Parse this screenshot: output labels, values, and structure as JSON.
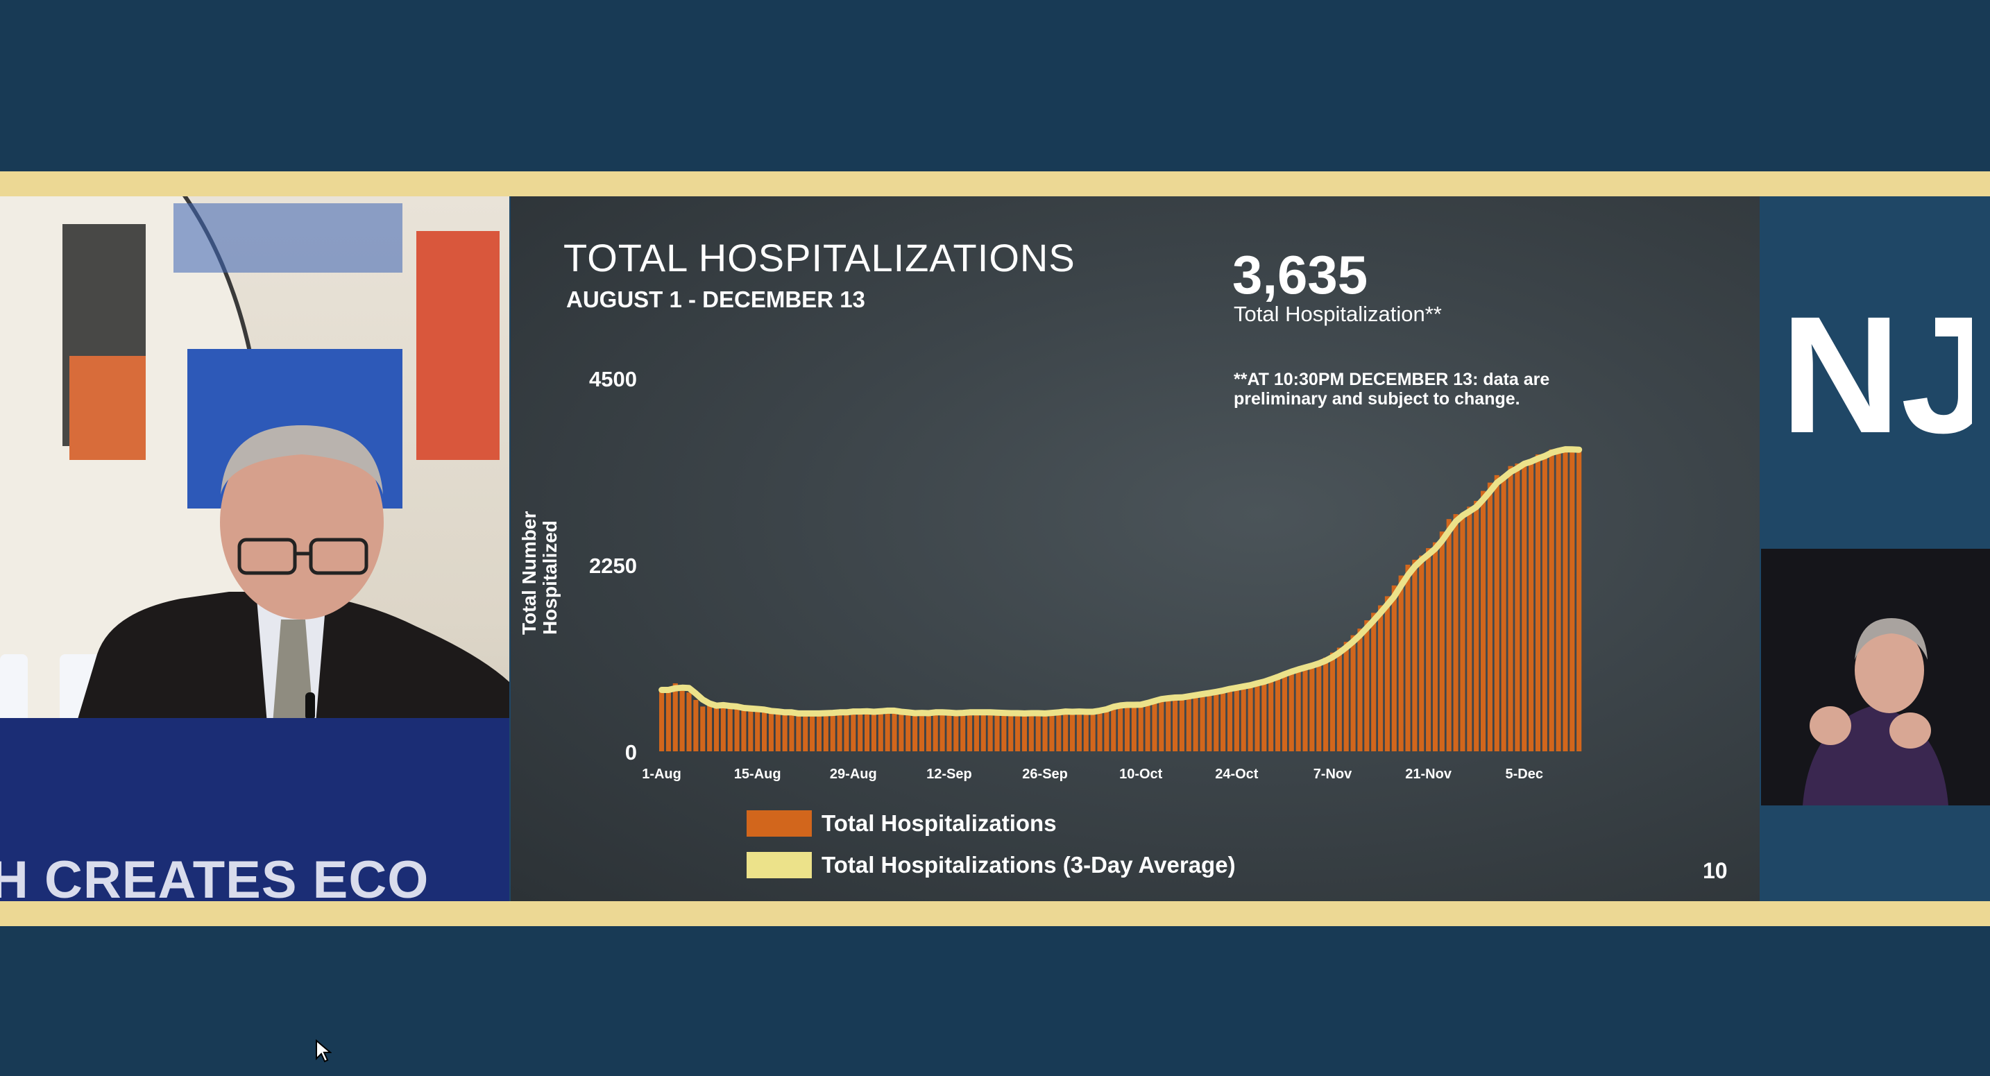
{
  "podium": {
    "banner_text": "H CREATES ECO"
  },
  "slide": {
    "title": "TOTAL HOSPITALIZATIONS",
    "subtitle": "AUGUST 1 - DECEMBER 13",
    "headline_value": "3,635",
    "headline_label": "Total Hospitalization**",
    "footnote": "**AT 10:30PM DECEMBER 13: data are preliminary and subject to change.",
    "page_number": "10",
    "legend": {
      "bars": "Total Hospitalizations",
      "line": "Total Hospitalizations (3-Day Average)"
    }
  },
  "logo": {
    "text": "NJ"
  },
  "colors": {
    "bars": "#d2661c",
    "line": "#ece28a",
    "band": "#ecd894",
    "background": "#183a55"
  },
  "chart_data": {
    "type": "bar",
    "ylabel": "Total Number Hospitalized",
    "ylim": [
      0,
      4500
    ],
    "yticks": [
      0,
      2250,
      4500
    ],
    "xtick_labels": [
      "1-Aug",
      "15-Aug",
      "29-Aug",
      "12-Sep",
      "26-Sep",
      "10-Oct",
      "24-Oct",
      "7-Nov",
      "21-Nov",
      "5-Dec"
    ],
    "start_date": "1-Aug",
    "end_date": "13-Dec",
    "series": [
      {
        "name": "Total Hospitalizations",
        "kind": "bar",
        "values": [
          740,
          720,
          820,
          760,
          710,
          620,
          540,
          570,
          540,
          560,
          540,
          520,
          510,
          520,
          500,
          490,
          470,
          480,
          460,
          470,
          440,
          460,
          450,
          460,
          470,
          460,
          480,
          470,
          490,
          480,
          480,
          470,
          500,
          490,
          480,
          460,
          470,
          450,
          470,
          460,
          480,
          470,
          450,
          460,
          480,
          470,
          460,
          480,
          470,
          450,
          470,
          460,
          450,
          460,
          470,
          450,
          460,
          480,
          470,
          490,
          470,
          480,
          480,
          470,
          520,
          530,
          560,
          570,
          550,
          560,
          580,
          610,
          630,
          650,
          640,
          650,
          660,
          680,
          690,
          700,
          720,
          730,
          750,
          780,
          770,
          800,
          820,
          840,
          860,
          900,
          930,
          960,
          990,
          1010,
          1030,
          1060,
          1090,
          1130,
          1190,
          1250,
          1320,
          1400,
          1480,
          1580,
          1670,
          1760,
          1870,
          2000,
          2120,
          2250,
          2310,
          2360,
          2450,
          2520,
          2650,
          2800,
          2860,
          2870,
          2950,
          3020,
          3140,
          3240,
          3330,
          3330,
          3440,
          3470,
          3490,
          3520,
          3580,
          3580,
          3640,
          3650,
          3635,
          3640,
          3635
        ]
      },
      {
        "name": "Total Hospitalizations (3-Day Average)",
        "kind": "line",
        "values": [
          740,
          740,
          760,
          767,
          763,
          697,
          623,
          577,
          550,
          557,
          547,
          540,
          523,
          517,
          510,
          503,
          487,
          480,
          470,
          470,
          457,
          457,
          457,
          457,
          460,
          463,
          470,
          470,
          480,
          480,
          483,
          477,
          483,
          490,
          490,
          477,
          470,
          460,
          463,
          460,
          470,
          470,
          467,
          460,
          463,
          470,
          470,
          470,
          470,
          467,
          463,
          460,
          460,
          457,
          460,
          460,
          457,
          463,
          470,
          480,
          477,
          480,
          477,
          477,
          490,
          507,
          537,
          553,
          560,
          560,
          563,
          583,
          607,
          630,
          640,
          648,
          650,
          663,
          677,
          690,
          703,
          717,
          733,
          753,
          767,
          783,
          797,
          820,
          840,
          867,
          897,
          930,
          960,
          987,
          1010,
          1033,
          1060,
          1093,
          1137,
          1190,
          1253,
          1323,
          1400,
          1487,
          1577,
          1670,
          1767,
          1867,
          1997,
          2123,
          2227,
          2307,
          2373,
          2443,
          2540,
          2657,
          2770,
          2843,
          2893,
          2947,
          3037,
          3133,
          3237,
          3300,
          3367,
          3413,
          3467,
          3493,
          3530,
          3560,
          3600,
          3623,
          3642,
          3640,
          3637
        ]
      }
    ]
  }
}
